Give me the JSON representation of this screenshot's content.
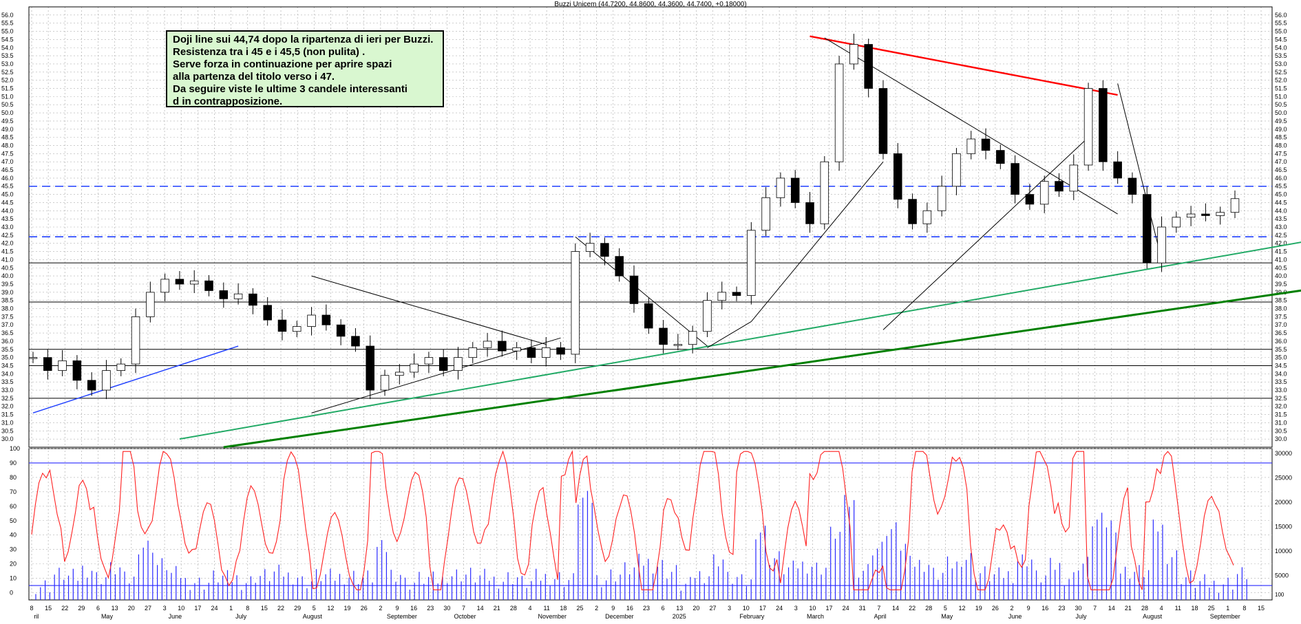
{
  "title": "Buzzi Unicem (44.7200, 44.8600, 44.3600, 44.7400, +0.18000)",
  "note": {
    "lines": [
      "Doji line sui 44,74 dopo la ripartenza di ieri per Buzzi.",
      "Resistenza tra i 45 e i 45,5 (non pulita) .",
      " Serve forza in continuazione per aprire spazi",
      "alla partenza del titolo verso i 47.",
      "Da seguire viste le ultime 3 candele interessanti",
      "d in contrapposizione."
    ]
  },
  "chart_data": [
    {
      "type": "candlestick",
      "title": "Buzzi Unicem (44.7200, 44.8600, 44.3600, 44.7400, +0.18000)",
      "ylim": [
        29.5,
        56.5
      ],
      "y_ticks": [
        "56.0",
        "55.5",
        "55.0",
        "54.5",
        "54.0",
        "53.5",
        "53.0",
        "52.5",
        "52.0",
        "51.5",
        "51.0",
        "50.5",
        "50.0",
        "49.5",
        "49.0",
        "48.5",
        "48.0",
        "47.5",
        "47.0",
        "46.5",
        "46.0",
        "45.5",
        "45.0",
        "44.5",
        "44.0",
        "43.5",
        "43.0",
        "42.5",
        "42.0",
        "41.5",
        "41.0",
        "40.5",
        "40.0",
        "39.5",
        "39.0",
        "38.5",
        "38.0",
        "37.5",
        "37.0",
        "36.5",
        "36.0",
        "35.5",
        "35.0",
        "34.5",
        "34.0",
        "33.5",
        "33.0",
        "32.5",
        "32.0",
        "31.5",
        "31.0",
        "30.5",
        "30.0"
      ],
      "x_day_labels": [
        "8",
        "15",
        "22",
        "29",
        "6",
        "13",
        "20",
        "27",
        "3",
        "10",
        "17",
        "24",
        "1",
        "8",
        "15",
        "22",
        "29",
        "5",
        "12",
        "19",
        "26",
        "2",
        "9",
        "16",
        "23",
        "30",
        "7",
        "14",
        "21",
        "28",
        "4",
        "11",
        "18",
        "25",
        "2",
        "9",
        "16",
        "23",
        "6",
        "13",
        "20",
        "27",
        "3",
        "10",
        "17",
        "24",
        "3",
        "10",
        "17",
        "24",
        "31",
        "7",
        "14",
        "22",
        "28",
        "5",
        "12",
        "19",
        "26",
        "2",
        "9",
        "16",
        "23",
        "30",
        "7",
        "14",
        "21",
        "28",
        "4",
        "11",
        "18",
        "25",
        "1",
        "8",
        "15"
      ],
      "x_month_labels": [
        "ril",
        "May",
        "June",
        "July",
        "August",
        "September",
        "October",
        "November",
        "December",
        "2025",
        "February",
        "March",
        "April",
        "May",
        "June",
        "July",
        "August",
        "September"
      ],
      "x_month_positions": [
        0.3,
        4.3,
        8.3,
        12.3,
        16.3,
        21.3,
        25.3,
        30.3,
        34.3,
        38.3,
        42.3,
        46.3,
        50.3,
        54.3,
        58.3,
        62.3,
        66.3,
        70.3
      ],
      "close_series": [
        [
          0,
          35.0
        ],
        [
          1,
          34.2
        ],
        [
          2,
          34.8
        ],
        [
          3,
          33.6
        ],
        [
          4,
          33.0
        ],
        [
          5,
          34.2
        ],
        [
          6,
          34.6
        ],
        [
          7,
          37.5
        ],
        [
          8,
          39.0
        ],
        [
          9,
          39.8
        ],
        [
          10,
          39.5
        ],
        [
          11,
          39.7
        ],
        [
          12,
          39.1
        ],
        [
          13,
          38.6
        ],
        [
          14,
          38.9
        ],
        [
          15,
          38.2
        ],
        [
          16,
          37.3
        ],
        [
          17,
          36.6
        ],
        [
          18,
          36.9
        ],
        [
          19,
          37.6
        ],
        [
          20,
          37.0
        ],
        [
          21,
          36.3
        ],
        [
          22,
          35.7
        ],
        [
          23,
          33.0
        ],
        [
          24,
          33.9
        ],
        [
          25,
          34.1
        ],
        [
          26,
          34.6
        ],
        [
          27,
          35.0
        ],
        [
          28,
          34.2
        ],
        [
          29,
          35.0
        ],
        [
          30,
          35.6
        ],
        [
          31,
          36.0
        ],
        [
          32,
          35.4
        ],
        [
          33,
          35.6
        ],
        [
          34,
          35.0
        ],
        [
          35,
          35.6
        ],
        [
          36,
          35.2
        ],
        [
          37,
          41.5
        ],
        [
          38,
          42.0
        ],
        [
          39,
          41.2
        ],
        [
          40,
          40.0
        ],
        [
          41,
          38.3
        ],
        [
          42,
          36.8
        ],
        [
          43,
          35.8
        ],
        [
          44,
          35.8
        ],
        [
          45,
          36.6
        ],
        [
          46,
          38.5
        ],
        [
          47,
          39.0
        ],
        [
          48,
          38.8
        ],
        [
          49,
          42.8
        ],
        [
          50,
          44.8
        ],
        [
          51,
          46.0
        ],
        [
          52,
          44.5
        ],
        [
          53,
          43.2
        ],
        [
          54,
          47.0
        ],
        [
          55,
          53.0
        ],
        [
          56,
          54.2
        ],
        [
          57,
          51.5
        ],
        [
          58,
          47.5
        ],
        [
          59,
          44.7
        ],
        [
          60,
          43.2
        ],
        [
          61,
          44.0
        ],
        [
          62,
          45.5
        ],
        [
          63,
          47.5
        ],
        [
          64,
          48.4
        ],
        [
          65,
          47.7
        ],
        [
          66,
          46.9
        ],
        [
          67,
          45.0
        ],
        [
          68,
          44.4
        ],
        [
          69,
          45.8
        ],
        [
          70,
          45.2
        ],
        [
          71,
          46.8
        ],
        [
          72,
          51.5
        ],
        [
          73,
          47.0
        ],
        [
          74,
          46.0
        ],
        [
          75,
          45.0
        ],
        [
          76,
          40.8
        ],
        [
          77,
          43.0
        ],
        [
          78,
          43.6
        ],
        [
          79,
          43.8
        ],
        [
          80,
          43.7
        ],
        [
          81,
          43.9
        ],
        [
          82,
          44.74
        ]
      ],
      "price_min": 29.5,
      "price_max": 56.5,
      "horizontal_levels": [
        {
          "value": 42.4,
          "style": "dashed",
          "color": "#1f3fff"
        },
        {
          "value": 45.5,
          "style": "dashed",
          "color": "#1f3fff"
        },
        {
          "value": 40.8,
          "style": "solid",
          "color": "#000000"
        },
        {
          "value": 38.4,
          "style": "solid",
          "color": "#000000"
        },
        {
          "value": 35.5,
          "style": "solid",
          "color": "#000000"
        },
        {
          "value": 32.5,
          "style": "solid",
          "color": "#000000"
        },
        {
          "value": 34.5,
          "style": "solid",
          "color": "#000000"
        }
      ]
    },
    {
      "type": "line",
      "name": "oscillator",
      "ylim": [
        -5,
        100
      ],
      "y_ticks": [
        "100",
        "90",
        "80",
        "70",
        "60",
        "50",
        "40",
        "30",
        "20",
        "10",
        "0"
      ],
      "reference_levels": [
        90,
        5
      ],
      "volume_ticks": [
        "30000",
        "25000",
        "20000",
        "15000",
        "10000",
        "5000"
      ],
      "volume_tick_values": [
        30000,
        25000,
        20000,
        15000,
        10000,
        5000
      ],
      "extra_label": "100"
    }
  ],
  "colors": {
    "candle_up": "#ffffff",
    "candle_down": "#000000",
    "grid": "#b0b0b0",
    "resistance_trend": "#ff0000",
    "support_light": "#22aa66",
    "support_dark": "#008000",
    "blue_trend": "#1f3fff",
    "oscillator": "#ff2020",
    "volume": "#2828ff"
  }
}
